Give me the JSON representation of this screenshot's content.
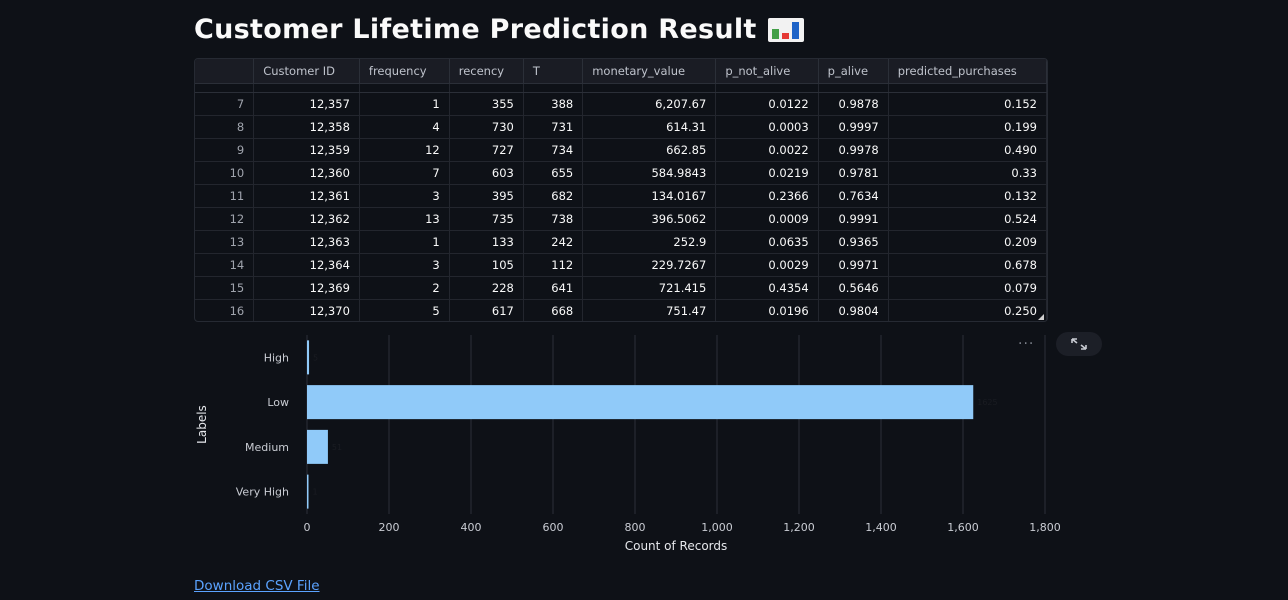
{
  "page": {
    "title": "Customer Lifetime Prediction Result",
    "title_icon": "bar-chart-emoji-icon"
  },
  "table": {
    "columns": [
      "",
      "Customer ID",
      "frequency",
      "recency",
      "T",
      "monetary_value",
      "p_not_alive",
      "p_alive",
      "predicted_purchases"
    ],
    "rows": [
      [
        "7",
        "12,357",
        "1",
        "355",
        "388",
        "6,207.67",
        "0.0122",
        "0.9878",
        "0.152"
      ],
      [
        "8",
        "12,358",
        "4",
        "730",
        "731",
        "614.31",
        "0.0003",
        "0.9997",
        "0.199"
      ],
      [
        "9",
        "12,359",
        "12",
        "727",
        "734",
        "662.85",
        "0.0022",
        "0.9978",
        "0.490"
      ],
      [
        "10",
        "12,360",
        "7",
        "603",
        "655",
        "584.9843",
        "0.0219",
        "0.9781",
        "0.33"
      ],
      [
        "11",
        "12,361",
        "3",
        "395",
        "682",
        "134.0167",
        "0.2366",
        "0.7634",
        "0.132"
      ],
      [
        "12",
        "12,362",
        "13",
        "735",
        "738",
        "396.5062",
        "0.0009",
        "0.9991",
        "0.524"
      ],
      [
        "13",
        "12,363",
        "1",
        "133",
        "242",
        "252.9",
        "0.0635",
        "0.9365",
        "0.209"
      ],
      [
        "14",
        "12,364",
        "3",
        "105",
        "112",
        "229.7267",
        "0.0029",
        "0.9971",
        "0.678"
      ],
      [
        "15",
        "12,369",
        "2",
        "228",
        "641",
        "721.415",
        "0.4354",
        "0.5646",
        "0.079"
      ],
      [
        "16",
        "12,370",
        "5",
        "617",
        "668",
        "751.47",
        "0.0196",
        "0.9804",
        "0.250"
      ]
    ]
  },
  "chart_data": {
    "type": "bar",
    "orientation": "horizontal",
    "categories": [
      "High",
      "Low",
      "Medium",
      "Very High"
    ],
    "values": [
      5,
      1625,
      51,
      1
    ],
    "data_labels": [
      "5",
      "1625",
      "51",
      "1"
    ],
    "xlabel": "Count of Records",
    "ylabel": "Labels",
    "xlim": [
      0,
      1800
    ],
    "xticks": [
      0,
      200,
      400,
      600,
      800,
      1000,
      1200,
      1400,
      1600,
      1800
    ],
    "xtick_labels": [
      "0",
      "200",
      "400",
      "600",
      "800",
      "1,000",
      "1,200",
      "1,400",
      "1,600",
      "1,800"
    ],
    "bar_color": "#90caf9",
    "grid": true
  },
  "chart_toolbar": {
    "menu_label": "···",
    "expand_icon": "fullscreen-expand-icon"
  },
  "download": {
    "label": "Download CSV File"
  }
}
